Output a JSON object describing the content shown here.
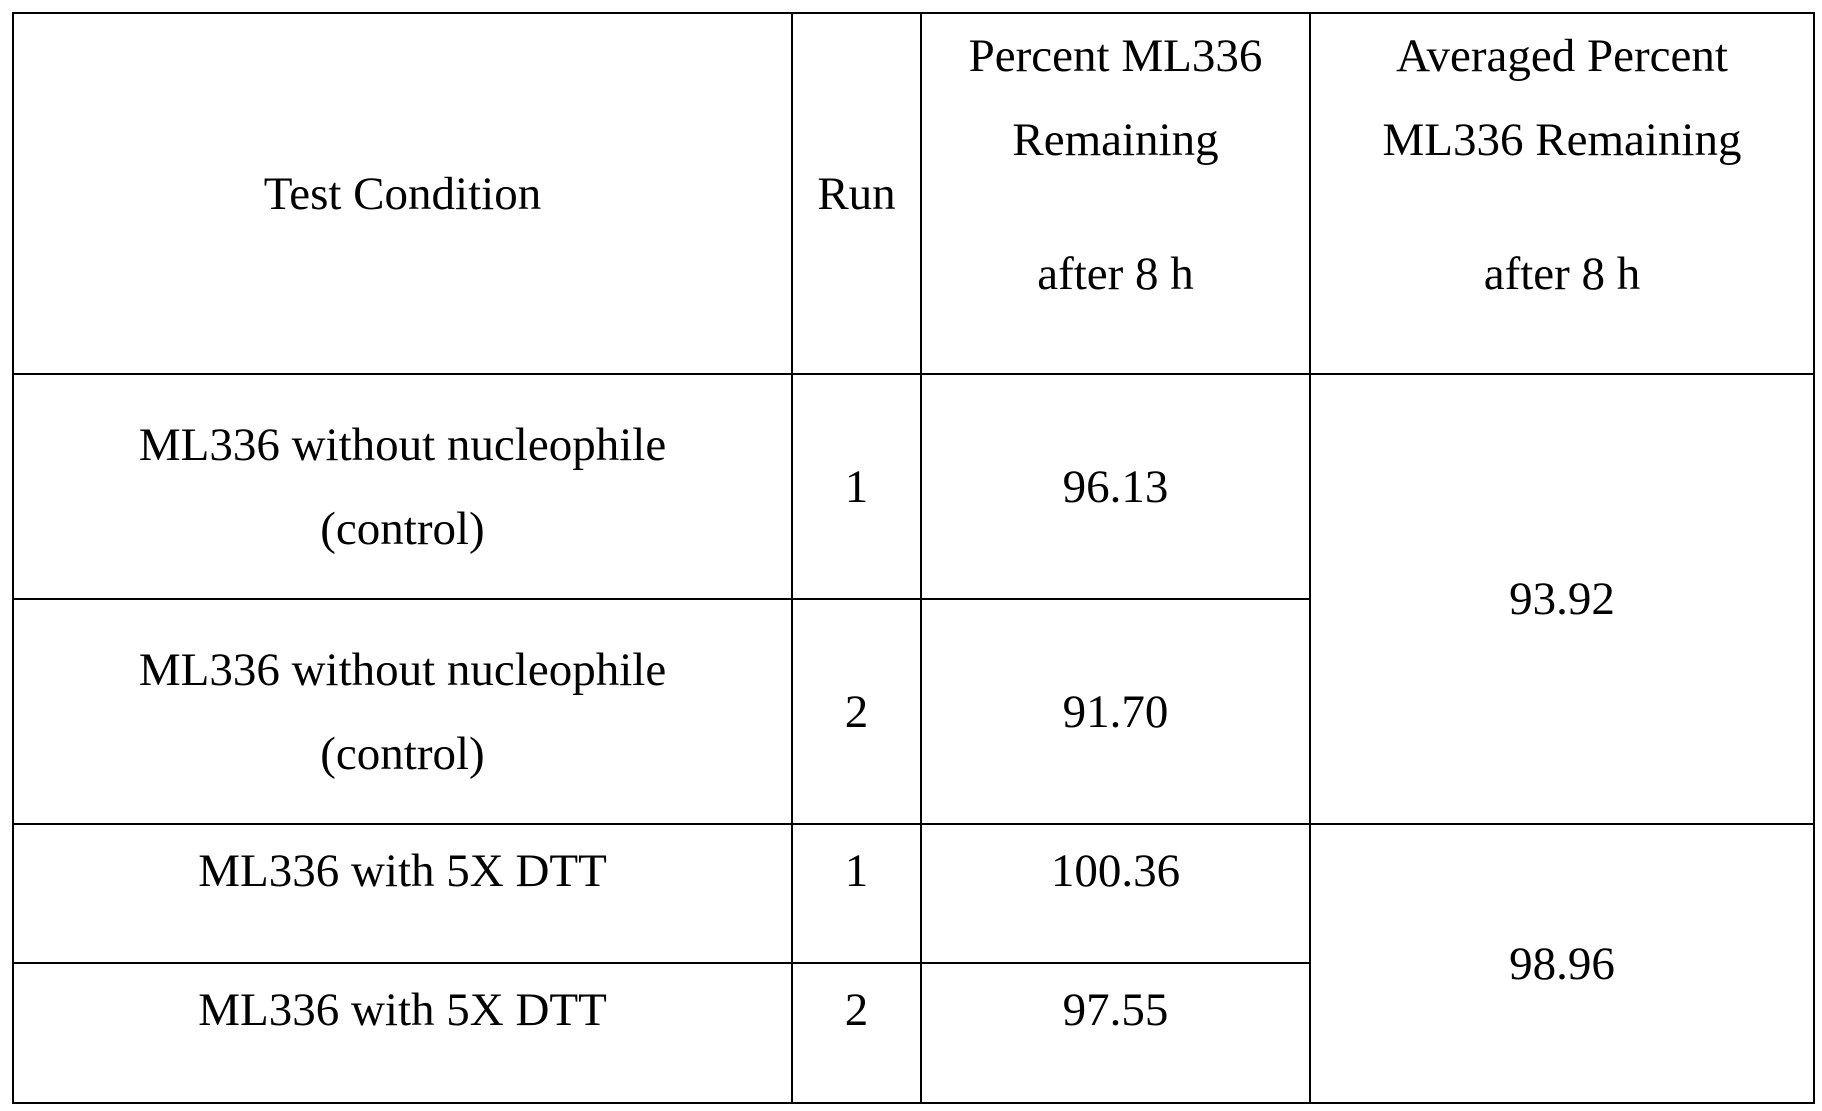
{
  "table": {
    "headers": {
      "condition": "Test Condition",
      "run": "Run",
      "percent_line1": "Percent ML336",
      "percent_line2": "Remaining",
      "percent_line3": "after 8 h",
      "avg_line1": "Averaged Percent",
      "avg_line2": "ML336 Remaining",
      "avg_line3": "after 8 h"
    },
    "rows": [
      {
        "condition_line1": "ML336 without nucleophile",
        "condition_line2": "(control)",
        "run": "1",
        "percent": "96.13"
      },
      {
        "condition_line1": "ML336 without nucleophile",
        "condition_line2": "(control)",
        "run": "2",
        "percent": "91.70"
      },
      {
        "condition_line1": "ML336 with 5X DTT",
        "run": "1",
        "percent": "100.36"
      },
      {
        "condition_line1": "ML336 with 5X DTT",
        "run": "2",
        "percent": "97.55"
      }
    ],
    "averages": [
      "93.92",
      "98.96"
    ]
  }
}
